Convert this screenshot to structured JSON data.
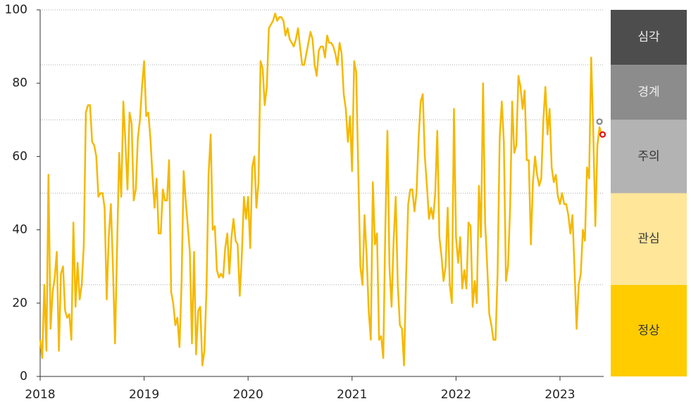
{
  "chart_data": {
    "type": "line",
    "x": [
      2018,
      2018.02,
      2018.04,
      2018.06,
      2018.08,
      2018.1,
      2018.12,
      2018.14,
      2018.16,
      2018.18,
      2018.2,
      2018.22,
      2018.24,
      2018.26,
      2018.28,
      2018.3,
      2018.32,
      2018.34,
      2018.36,
      2018.38,
      2018.4,
      2018.42,
      2018.44,
      2018.46,
      2018.48,
      2018.5,
      2018.52,
      2018.54,
      2018.56,
      2018.58,
      2018.6,
      2018.62,
      2018.64,
      2018.66,
      2018.68,
      2018.7,
      2018.72,
      2018.74,
      2018.76,
      2018.78,
      2018.8,
      2018.82,
      2018.84,
      2018.86,
      2018.88,
      2018.9,
      2018.92,
      2018.94,
      2018.96,
      2018.98,
      2019,
      2019.02,
      2019.04,
      2019.06,
      2019.08,
      2019.1,
      2019.12,
      2019.14,
      2019.16,
      2019.18,
      2019.2,
      2019.22,
      2019.24,
      2019.26,
      2019.28,
      2019.3,
      2019.32,
      2019.34,
      2019.36,
      2019.38,
      2019.4,
      2019.42,
      2019.44,
      2019.46,
      2019.48,
      2019.5,
      2019.52,
      2019.54,
      2019.56,
      2019.58,
      2019.6,
      2019.62,
      2019.64,
      2019.66,
      2019.68,
      2019.7,
      2019.72,
      2019.74,
      2019.76,
      2019.78,
      2019.8,
      2019.82,
      2019.84,
      2019.86,
      2019.88,
      2019.9,
      2019.92,
      2019.94,
      2019.96,
      2019.98,
      2020,
      2020.02,
      2020.04,
      2020.06,
      2020.08,
      2020.1,
      2020.12,
      2020.14,
      2020.16,
      2020.18,
      2020.2,
      2020.22,
      2020.24,
      2020.26,
      2020.28,
      2020.3,
      2020.32,
      2020.34,
      2020.36,
      2020.38,
      2020.4,
      2020.42,
      2020.44,
      2020.46,
      2020.48,
      2020.5,
      2020.52,
      2020.54,
      2020.56,
      2020.58,
      2020.6,
      2020.62,
      2020.64,
      2020.66,
      2020.68,
      2020.7,
      2020.72,
      2020.74,
      2020.76,
      2020.78,
      2020.8,
      2020.82,
      2020.84,
      2020.86,
      2020.88,
      2020.9,
      2020.92,
      2020.94,
      2020.96,
      2020.98,
      2021,
      2021.02,
      2021.04,
      2021.06,
      2021.08,
      2021.1,
      2021.12,
      2021.14,
      2021.16,
      2021.18,
      2021.2,
      2021.22,
      2021.24,
      2021.26,
      2021.28,
      2021.3,
      2021.32,
      2021.34,
      2021.36,
      2021.38,
      2021.4,
      2021.42,
      2021.44,
      2021.46,
      2021.48,
      2021.5,
      2021.52,
      2021.54,
      2021.56,
      2021.58,
      2021.6,
      2021.62,
      2021.64,
      2021.66,
      2021.68,
      2021.7,
      2021.72,
      2021.74,
      2021.76,
      2021.78,
      2021.8,
      2021.82,
      2021.84,
      2021.86,
      2021.88,
      2021.9,
      2021.92,
      2021.94,
      2021.96,
      2021.98,
      2022,
      2022.02,
      2022.04,
      2022.06,
      2022.08,
      2022.1,
      2022.12,
      2022.14,
      2022.16,
      2022.18,
      2022.2,
      2022.22,
      2022.24,
      2022.26,
      2022.28,
      2022.3,
      2022.32,
      2022.34,
      2022.36,
      2022.38,
      2022.4,
      2022.42,
      2022.44,
      2022.46,
      2022.48,
      2022.5,
      2022.52,
      2022.54,
      2022.56,
      2022.58,
      2022.6,
      2022.62,
      2022.64,
      2022.66,
      2022.68,
      2022.7,
      2022.72,
      2022.74,
      2022.76,
      2022.78,
      2022.8,
      2022.82,
      2022.84,
      2022.86,
      2022.88,
      2022.9,
      2022.92,
      2022.94,
      2022.96,
      2022.98,
      2023,
      2023.02,
      2023.04,
      2023.06,
      2023.08,
      2023.1,
      2023.12,
      2023.14,
      2023.16,
      2023.18,
      2023.2,
      2023.22,
      2023.24,
      2023.26,
      2023.28,
      2023.3,
      2023.32,
      2023.34,
      2023.36,
      2023.38,
      2023.4
    ],
    "series": [
      {
        "color": "#f5b800",
        "values": [
          10,
          5,
          25,
          7,
          55,
          13,
          23,
          27,
          34,
          7,
          28,
          30,
          18,
          16,
          17,
          10,
          42,
          19,
          31,
          21,
          25,
          36,
          72,
          74,
          74,
          64,
          63,
          60,
          49,
          50,
          50,
          46,
          21,
          38,
          47,
          30,
          9,
          35,
          61,
          49,
          75,
          64,
          51,
          72,
          69,
          48,
          51,
          65,
          70,
          79,
          86,
          71,
          72,
          65,
          55,
          46,
          54,
          39,
          39,
          51,
          48,
          48,
          59,
          23,
          20,
          14,
          16,
          8,
          25,
          56,
          48,
          41,
          34,
          9,
          34,
          6,
          18,
          19,
          3,
          7,
          24,
          55,
          66,
          40,
          41,
          29,
          27,
          28,
          27,
          35,
          39,
          28,
          38,
          43,
          37,
          36,
          22,
          33,
          49,
          43,
          49,
          35,
          57,
          60,
          46,
          53,
          86,
          84,
          74,
          79,
          95,
          96,
          97,
          99,
          97,
          98,
          98,
          97,
          93,
          95,
          92,
          91,
          90,
          92,
          95,
          90,
          85,
          85,
          88,
          91,
          94,
          92,
          85,
          82,
          89,
          90,
          90,
          87,
          93,
          91,
          91,
          90,
          88,
          85,
          91,
          88,
          77,
          73,
          64,
          71,
          56,
          86,
          83,
          55,
          30,
          25,
          44,
          33,
          18,
          10,
          53,
          36,
          39,
          10,
          11,
          5,
          40,
          67,
          30,
          19,
          37,
          49,
          25,
          14,
          13,
          3,
          28,
          47,
          51,
          51,
          45,
          50,
          65,
          75,
          77,
          60,
          52,
          43,
          46,
          43,
          50,
          67,
          38,
          33,
          26,
          30,
          46,
          25,
          20,
          73,
          38,
          31,
          38,
          24,
          29,
          24,
          42,
          41,
          19,
          26,
          20,
          52,
          38,
          80,
          42,
          30,
          17,
          14,
          10,
          10,
          28,
          65,
          75,
          64,
          26,
          30,
          46,
          75,
          61,
          63,
          82,
          79,
          73,
          78,
          59,
          59,
          36,
          53,
          60,
          55,
          52,
          54,
          70,
          79,
          66,
          73,
          57,
          53,
          55,
          49,
          47,
          50,
          47,
          47,
          44,
          39,
          44,
          29,
          13,
          25,
          28,
          40,
          37,
          57,
          54,
          87,
          67,
          41,
          63,
          68,
          66
        ]
      }
    ],
    "markers": [
      {
        "x": 2023.38,
        "value": 69.5,
        "color": "#808080"
      },
      {
        "x": 2023.41,
        "value": 66,
        "color": "#e60000"
      }
    ],
    "bands": [
      {
        "label": "정상",
        "from": 0,
        "to": 25,
        "color": "#ffcc00"
      },
      {
        "label": "관심",
        "from": 25,
        "to": 50,
        "color": "#ffe699"
      },
      {
        "label": "주의",
        "from": 50,
        "to": 70,
        "color": "#b3b3b3"
      },
      {
        "label": "경계",
        "from": 70,
        "to": 85,
        "color": "#8c8c8c"
      },
      {
        "label": "심각",
        "from": 85,
        "to": 100,
        "color": "#4d4d4d"
      }
    ],
    "xlim": [
      2018,
      2023.42
    ],
    "xticks": [
      2018,
      2019,
      2020,
      2021,
      2022,
      2023
    ],
    "ylim": [
      0,
      100
    ],
    "yticks": [
      0,
      20,
      40,
      60,
      80,
      100
    ]
  }
}
